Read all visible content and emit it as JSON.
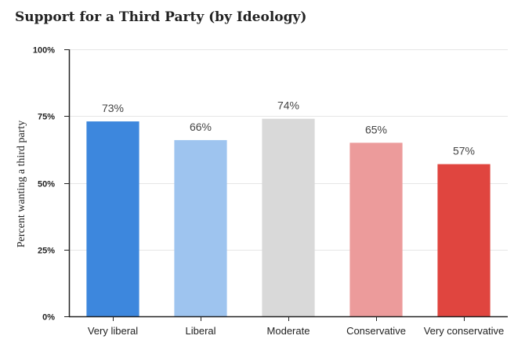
{
  "chart_data": {
    "type": "bar",
    "title": "Support for a Third Party (by Ideology)",
    "xlabel": "",
    "ylabel": "Percent wanting a third party",
    "ylim": [
      0,
      100
    ],
    "yticks": [
      0,
      25,
      50,
      75,
      100
    ],
    "ytick_labels": [
      "0%",
      "25%",
      "50%",
      "75%",
      "100%"
    ],
    "grid": true,
    "legend": "none",
    "categories": [
      "Very liberal",
      "Liberal",
      "Moderate",
      "Conservative",
      "Very conservative"
    ],
    "values": [
      73,
      66,
      74,
      65,
      57
    ],
    "data_labels": [
      "73%",
      "66%",
      "74%",
      "65%",
      "57%"
    ],
    "colors": [
      "#3d87dd",
      "#9ec4ef",
      "#d9d9d9",
      "#ec9b9b",
      "#e0453f"
    ]
  }
}
